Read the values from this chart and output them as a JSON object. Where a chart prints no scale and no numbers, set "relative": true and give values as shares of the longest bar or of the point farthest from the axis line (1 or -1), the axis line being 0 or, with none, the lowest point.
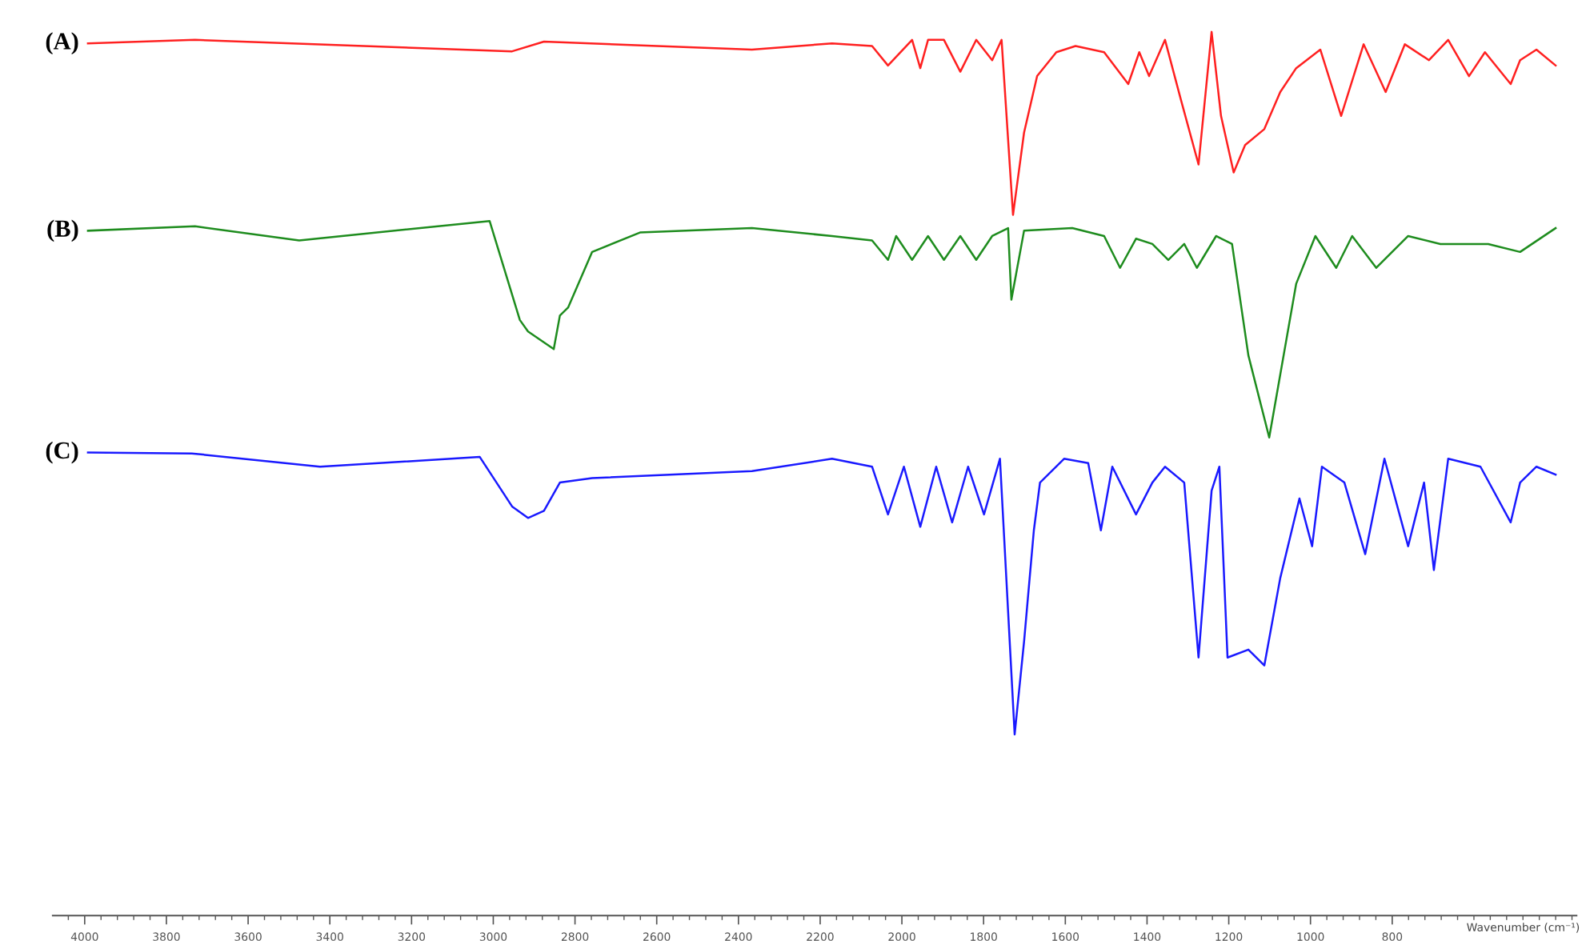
{
  "chart_data": {
    "type": "line",
    "relative": true,
    "xlabel": "Wavenumber (cm⁻¹)",
    "xlim": [
      4078,
      349
    ],
    "xticks": [
      4000,
      3800,
      3600,
      3400,
      3200,
      3000,
      2800,
      2600,
      2400,
      2200,
      2000,
      1800,
      1600,
      1400,
      1200,
      1000,
      800
    ],
    "grid": false,
    "legend": false,
    "marker": "none",
    "line_style": "solid",
    "series": [
      {
        "name": "(A)",
        "color": "#ff2020",
        "x": [
          3992,
          3730,
          2954,
          2876,
          2367,
          2171,
          2073,
          2034,
          1975,
          1955,
          1936,
          1897,
          1857,
          1818,
          1779,
          1756,
          1728,
          1701,
          1669,
          1622,
          1575,
          1505,
          1446,
          1419,
          1395,
          1356,
          1317,
          1274,
          1242,
          1219,
          1188,
          1160,
          1113,
          1074,
          1035,
          976,
          925,
          870,
          816,
          769,
          710,
          663,
          612,
          573,
          510,
          487,
          447,
          400
        ],
        "values": [
          0.987,
          0.991,
          0.978,
          0.989,
          0.98,
          0.987,
          0.984,
          0.962,
          0.991,
          0.959,
          0.991,
          0.991,
          0.955,
          0.991,
          0.968,
          0.991,
          0.793,
          0.886,
          0.95,
          0.977,
          0.984,
          0.977,
          0.941,
          0.977,
          0.95,
          0.991,
          0.923,
          0.85,
          1,
          0.905,
          0.841,
          0.872,
          0.89,
          0.932,
          0.959,
          0.98,
          0.905,
          0.986,
          0.932,
          0.986,
          0.968,
          0.991,
          0.95,
          0.977,
          0.941,
          0.968,
          0.98,
          0.962
        ]
      },
      {
        "name": "(B)",
        "color": "#1e8c1e",
        "x": [
          3992,
          3730,
          3475,
          3009,
          2935,
          2915,
          2852,
          2837,
          2817,
          2758,
          2641,
          2367,
          2171,
          2073,
          2034,
          2014,
          1975,
          1936,
          1897,
          1857,
          1818,
          1779,
          1740,
          1732,
          1701,
          1583,
          1505,
          1466,
          1427,
          1387,
          1348,
          1309,
          1278,
          1231,
          1192,
          1152,
          1101,
          1035,
          988,
          937,
          898,
          839,
          761,
          682,
          565,
          487,
          400
        ],
        "values": [
          0.775,
          0.78,
          0.764,
          0.786,
          0.674,
          0.661,
          0.641,
          0.679,
          0.688,
          0.751,
          0.773,
          0.778,
          0.769,
          0.764,
          0.742,
          0.769,
          0.742,
          0.769,
          0.742,
          0.769,
          0.742,
          0.769,
          0.778,
          0.697,
          0.775,
          0.778,
          0.769,
          0.733,
          0.766,
          0.76,
          0.742,
          0.76,
          0.733,
          0.769,
          0.76,
          0.634,
          0.541,
          0.715,
          0.769,
          0.733,
          0.769,
          0.733,
          0.769,
          0.76,
          0.76,
          0.751,
          0.778
        ]
      },
      {
        "name": "(C)",
        "color": "#1a1aff",
        "x": [
          3992,
          3738,
          3424,
          3033,
          2954,
          2915,
          2876,
          2837,
          2758,
          2367,
          2171,
          2073,
          2034,
          1995,
          1955,
          1916,
          1877,
          1838,
          1799,
          1760,
          1724,
          1701,
          1677,
          1662,
          1603,
          1544,
          1513,
          1485,
          1427,
          1387,
          1356,
          1309,
          1274,
          1242,
          1223,
          1203,
          1152,
          1113,
          1074,
          1027,
          996,
          972,
          917,
          866,
          819,
          761,
          722,
          698,
          663,
          584,
          510,
          487,
          447,
          400
        ],
        "values": [
          0.524,
          0.523,
          0.508,
          0.519,
          0.463,
          0.45,
          0.458,
          0.49,
          0.495,
          0.503,
          0.517,
          0.508,
          0.454,
          0.508,
          0.44,
          0.508,
          0.445,
          0.508,
          0.454,
          0.517,
          0.205,
          0.31,
          0.436,
          0.49,
          0.517,
          0.512,
          0.436,
          0.508,
          0.454,
          0.49,
          0.508,
          0.49,
          0.292,
          0.481,
          0.508,
          0.292,
          0.301,
          0.283,
          0.382,
          0.472,
          0.418,
          0.508,
          0.49,
          0.409,
          0.517,
          0.418,
          0.49,
          0.391,
          0.517,
          0.508,
          0.445,
          0.49,
          0.508,
          0.499
        ]
      }
    ]
  }
}
